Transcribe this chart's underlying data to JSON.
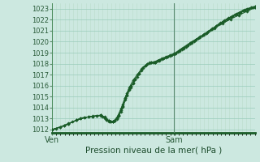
{
  "xlabel": "Pression niveau de la mer( hPa )",
  "bg_color": "#cce8e0",
  "grid_major_color": "#99ccbb",
  "grid_minor_color": "#bbddcc",
  "line_color": "#1a5c28",
  "marker_color": "#1a5c28",
  "ylim": [
    1011.7,
    1023.5
  ],
  "yticks": [
    1012,
    1013,
    1014,
    1015,
    1016,
    1017,
    1018,
    1019,
    1020,
    1021,
    1022,
    1023
  ],
  "xtick_labels": [
    "Ven",
    "Sam"
  ],
  "xtick_pos": [
    0.0,
    0.6
  ],
  "vline_x": 0.6,
  "series": [
    [
      0.0,
      1012.0,
      0.02,
      1012.1,
      0.04,
      1012.2,
      0.06,
      1012.4,
      0.08,
      1012.55,
      0.1,
      1012.7,
      0.12,
      1012.85,
      0.14,
      1013.0,
      0.16,
      1013.1,
      0.18,
      1013.15,
      0.2,
      1013.2,
      0.22,
      1013.25,
      0.24,
      1013.3,
      0.26,
      1013.15,
      0.27,
      1012.95,
      0.28,
      1012.82,
      0.29,
      1012.72,
      0.3,
      1012.72,
      0.31,
      1012.82,
      0.32,
      1013.05,
      0.33,
      1013.35,
      0.34,
      1013.75,
      0.35,
      1014.3,
      0.36,
      1014.85,
      0.37,
      1015.3,
      0.38,
      1015.65,
      0.39,
      1015.95,
      0.4,
      1016.2,
      0.42,
      1016.8,
      0.44,
      1017.35,
      0.46,
      1017.8,
      0.48,
      1018.05,
      0.5,
      1018.1,
      0.51,
      1018.15,
      0.52,
      1018.25,
      0.54,
      1018.4,
      0.56,
      1018.55,
      0.58,
      1018.7,
      0.6,
      1018.85,
      0.62,
      1019.05,
      0.64,
      1019.3,
      0.66,
      1019.55,
      0.68,
      1019.8,
      0.7,
      1020.05,
      0.72,
      1020.3,
      0.74,
      1020.55,
      0.76,
      1020.8,
      0.78,
      1021.05,
      0.8,
      1021.3,
      0.82,
      1021.55,
      0.84,
      1021.8,
      0.86,
      1022.05,
      0.88,
      1022.25,
      0.9,
      1022.45,
      0.92,
      1022.65,
      0.94,
      1022.85,
      0.96,
      1023.0,
      0.98,
      1023.1,
      1.0,
      1023.2
    ],
    [
      0.0,
      1012.0,
      0.04,
      1012.2,
      0.08,
      1012.5,
      0.12,
      1012.85,
      0.16,
      1013.1,
      0.2,
      1013.2,
      0.24,
      1013.3,
      0.26,
      1013.1,
      0.28,
      1012.8,
      0.3,
      1012.72,
      0.32,
      1013.1,
      0.34,
      1013.9,
      0.36,
      1014.9,
      0.38,
      1015.8,
      0.4,
      1016.5,
      0.42,
      1017.0,
      0.44,
      1017.5,
      0.46,
      1017.85,
      0.48,
      1018.1,
      0.5,
      1018.15,
      0.52,
      1018.3,
      0.54,
      1018.45,
      0.56,
      1018.6,
      0.58,
      1018.75,
      0.6,
      1018.9,
      0.64,
      1019.4,
      0.68,
      1019.9,
      0.72,
      1020.35,
      0.76,
      1020.8,
      0.8,
      1021.25,
      0.84,
      1021.65,
      0.88,
      1022.05,
      0.92,
      1022.4,
      0.96,
      1022.75,
      1.0,
      1023.1
    ],
    [
      0.0,
      1012.0,
      0.08,
      1012.5,
      0.14,
      1013.05,
      0.2,
      1013.22,
      0.24,
      1013.32,
      0.26,
      1013.12,
      0.27,
      1012.88,
      0.28,
      1012.75,
      0.29,
      1012.72,
      0.3,
      1012.72,
      0.31,
      1012.78,
      0.32,
      1012.95,
      0.33,
      1013.25,
      0.35,
      1014.05,
      0.37,
      1015.1,
      0.39,
      1015.85,
      0.41,
      1016.55,
      0.43,
      1017.1,
      0.45,
      1017.65,
      0.47,
      1017.95,
      0.49,
      1018.15,
      0.51,
      1018.15,
      0.53,
      1018.35,
      0.55,
      1018.5,
      0.57,
      1018.65,
      0.59,
      1018.8,
      0.61,
      1018.95,
      0.63,
      1019.2,
      0.65,
      1019.45,
      0.67,
      1019.7,
      0.69,
      1019.95,
      0.71,
      1020.2,
      0.73,
      1020.45,
      0.75,
      1020.7,
      0.77,
      1020.95,
      0.79,
      1021.2,
      0.81,
      1021.45,
      0.83,
      1021.7,
      0.85,
      1021.95,
      0.87,
      1022.15,
      0.89,
      1022.35,
      0.91,
      1022.55,
      0.93,
      1022.72,
      0.95,
      1022.88,
      0.97,
      1023.02,
      0.99,
      1023.12,
      1.0,
      1023.18
    ],
    [
      0.0,
      1012.0,
      0.06,
      1012.35,
      0.12,
      1012.85,
      0.18,
      1013.15,
      0.22,
      1013.25,
      0.24,
      1013.25,
      0.25,
      1013.18,
      0.26,
      1013.05,
      0.27,
      1012.9,
      0.28,
      1012.78,
      0.29,
      1012.72,
      0.3,
      1012.72,
      0.31,
      1012.8,
      0.32,
      1013.0,
      0.33,
      1013.25,
      0.34,
      1013.65,
      0.35,
      1014.15,
      0.36,
      1014.75,
      0.37,
      1015.2,
      0.38,
      1015.6,
      0.39,
      1015.95,
      0.4,
      1016.25,
      0.41,
      1016.55,
      0.43,
      1017.1,
      0.45,
      1017.6,
      0.47,
      1017.95,
      0.49,
      1018.12,
      0.51,
      1018.15,
      0.53,
      1018.3,
      0.55,
      1018.45,
      0.57,
      1018.6,
      0.59,
      1018.75,
      0.61,
      1018.9,
      0.63,
      1019.15,
      0.65,
      1019.4,
      0.67,
      1019.65,
      0.69,
      1019.9,
      0.71,
      1020.15,
      0.73,
      1020.4,
      0.75,
      1020.65,
      0.77,
      1020.9,
      0.79,
      1021.15,
      0.81,
      1021.4,
      0.83,
      1021.65,
      0.85,
      1021.9,
      0.87,
      1022.1,
      0.89,
      1022.3,
      0.91,
      1022.5,
      0.93,
      1022.65,
      0.95,
      1022.82,
      0.97,
      1022.95,
      0.99,
      1023.1,
      1.0,
      1023.15
    ]
  ]
}
